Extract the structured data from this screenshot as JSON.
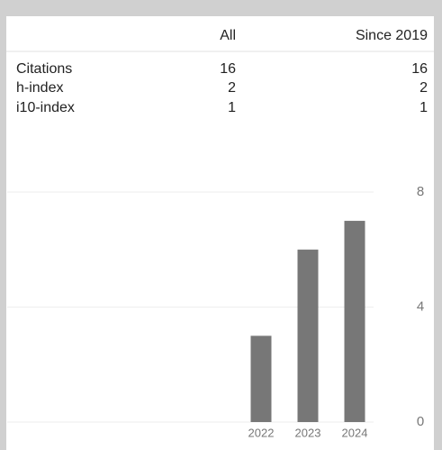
{
  "table": {
    "columns": [
      "All",
      "Since 2019"
    ],
    "rows": [
      [
        "Citations",
        "16",
        "16"
      ],
      [
        "h-index",
        "2",
        "2"
      ],
      [
        "i10-index",
        "1",
        "1"
      ]
    ]
  },
  "chart_data": {
    "type": "bar",
    "categories": [
      "2022",
      "2023",
      "2024"
    ],
    "values": [
      3,
      6,
      7
    ],
    "color": "#777777",
    "ylim": [
      0,
      8
    ],
    "yticks": [
      0,
      4,
      8
    ],
    "grid": true
  }
}
